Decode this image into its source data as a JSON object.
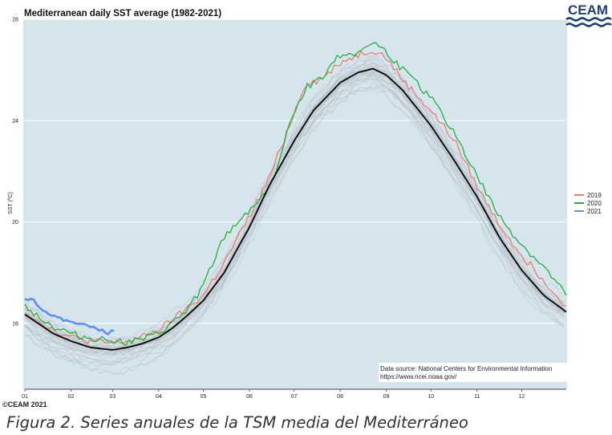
{
  "figure": {
    "logo_text": "CEAM",
    "copyright": "©CEAM 2021",
    "caption": "Figura 2. Series anuales de la TSM media del Mediterráneo"
  },
  "chart_data": {
    "type": "line",
    "title": "Mediterranean daily SST average (1982-2021)",
    "xlabel": "",
    "ylabel": "SST (ºC)",
    "x_unit": "day of year",
    "xlim": [
      1,
      365
    ],
    "ylim": [
      13.4,
      28
    ],
    "x_ticks": [
      {
        "label": "01",
        "day": 1
      },
      {
        "label": "02",
        "day": 32
      },
      {
        "label": "03",
        "day": 60
      },
      {
        "label": "04",
        "day": 91
      },
      {
        "label": "05",
        "day": 121
      },
      {
        "label": "06",
        "day": 152
      },
      {
        "label": "07",
        "day": 182
      },
      {
        "label": "08",
        "day": 213
      },
      {
        "label": "09",
        "day": 244
      },
      {
        "label": "10",
        "day": 274
      },
      {
        "label": "11",
        "day": 305
      },
      {
        "label": "12",
        "day": 335
      }
    ],
    "y_ticks": [
      16,
      20,
      24,
      28
    ],
    "grid": "horizontal",
    "background": "#d6e4ec",
    "legend_position": "right",
    "annotation": [
      "Data source: National Centers for Environmental Information",
      "https://www.ncei.noaa.gov/"
    ],
    "mean_line": {
      "color": "#000000",
      "points": [
        [
          1,
          16.35
        ],
        [
          10,
          16.0
        ],
        [
          20,
          15.6
        ],
        [
          32,
          15.3
        ],
        [
          45,
          15.05
        ],
        [
          60,
          14.95
        ],
        [
          70,
          15.05
        ],
        [
          80,
          15.2
        ],
        [
          91,
          15.45
        ],
        [
          100,
          15.8
        ],
        [
          110,
          16.3
        ],
        [
          121,
          16.9
        ],
        [
          135,
          18.0
        ],
        [
          152,
          19.8
        ],
        [
          165,
          21.4
        ],
        [
          182,
          23.2
        ],
        [
          195,
          24.4
        ],
        [
          213,
          25.5
        ],
        [
          225,
          25.9
        ],
        [
          235,
          26.05
        ],
        [
          244,
          25.8
        ],
        [
          255,
          25.2
        ],
        [
          274,
          23.8
        ],
        [
          290,
          22.4
        ],
        [
          305,
          21.0
        ],
        [
          320,
          19.4
        ],
        [
          335,
          18.1
        ],
        [
          350,
          17.1
        ],
        [
          365,
          16.45
        ]
      ]
    },
    "series": [
      {
        "name": "2019",
        "color": "#ee7b72",
        "points": [
          [
            1,
            16.5
          ],
          [
            10,
            16.1
          ],
          [
            20,
            15.75
          ],
          [
            32,
            15.45
          ],
          [
            45,
            15.3
          ],
          [
            60,
            15.2
          ],
          [
            70,
            15.3
          ],
          [
            80,
            15.45
          ],
          [
            91,
            15.75
          ],
          [
            100,
            16.1
          ],
          [
            110,
            16.6
          ],
          [
            121,
            17.1
          ],
          [
            135,
            18.4
          ],
          [
            152,
            20.2
          ],
          [
            165,
            21.7
          ],
          [
            182,
            24.3
          ],
          [
            190,
            25.5
          ],
          [
            200,
            25.6
          ],
          [
            213,
            26.3
          ],
          [
            225,
            26.6
          ],
          [
            235,
            26.8
          ],
          [
            244,
            26.5
          ],
          [
            255,
            25.6
          ],
          [
            274,
            24.4
          ],
          [
            290,
            23.2
          ],
          [
            305,
            21.4
          ],
          [
            320,
            19.9
          ],
          [
            335,
            18.7
          ],
          [
            350,
            17.7
          ],
          [
            365,
            16.7
          ]
        ]
      },
      {
        "name": "2020",
        "color": "#1fb33a",
        "points": [
          [
            1,
            16.7
          ],
          [
            10,
            16.3
          ],
          [
            20,
            15.85
          ],
          [
            32,
            15.6
          ],
          [
            45,
            15.4
          ],
          [
            60,
            15.35
          ],
          [
            70,
            15.25
          ],
          [
            80,
            15.35
          ],
          [
            91,
            15.6
          ],
          [
            100,
            16.0
          ],
          [
            110,
            16.5
          ],
          [
            121,
            17.5
          ],
          [
            135,
            19.4
          ],
          [
            152,
            20.5
          ],
          [
            160,
            20.9
          ],
          [
            170,
            22.0
          ],
          [
            182,
            24.4
          ],
          [
            190,
            25.3
          ],
          [
            200,
            25.7
          ],
          [
            213,
            26.6
          ],
          [
            225,
            26.7
          ],
          [
            235,
            27.1
          ],
          [
            244,
            26.7
          ],
          [
            255,
            26.0
          ],
          [
            274,
            24.9
          ],
          [
            290,
            23.5
          ],
          [
            305,
            21.8
          ],
          [
            320,
            20.2
          ],
          [
            335,
            19.1
          ],
          [
            350,
            18.2
          ],
          [
            365,
            17.1
          ]
        ]
      },
      {
        "name": "2021",
        "color": "#5b8ff5",
        "points": [
          [
            1,
            17.0
          ],
          [
            7,
            16.9
          ],
          [
            14,
            16.5
          ],
          [
            20,
            16.3
          ],
          [
            28,
            16.1
          ],
          [
            35,
            16.05
          ],
          [
            42,
            15.9
          ],
          [
            50,
            15.8
          ],
          [
            56,
            15.6
          ],
          [
            61,
            15.7
          ]
        ]
      }
    ],
    "background_years_note": "Individual years 1982-2018 drawn as thin grey lines"
  }
}
